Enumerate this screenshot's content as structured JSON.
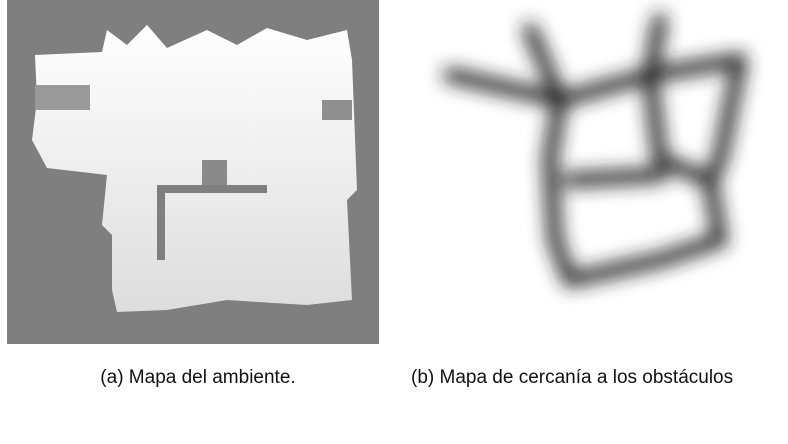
{
  "figure": {
    "captions": [
      "(a) Mapa del ambiente.",
      "(b) Mapa de cercanía a los obstáculos"
    ]
  }
}
